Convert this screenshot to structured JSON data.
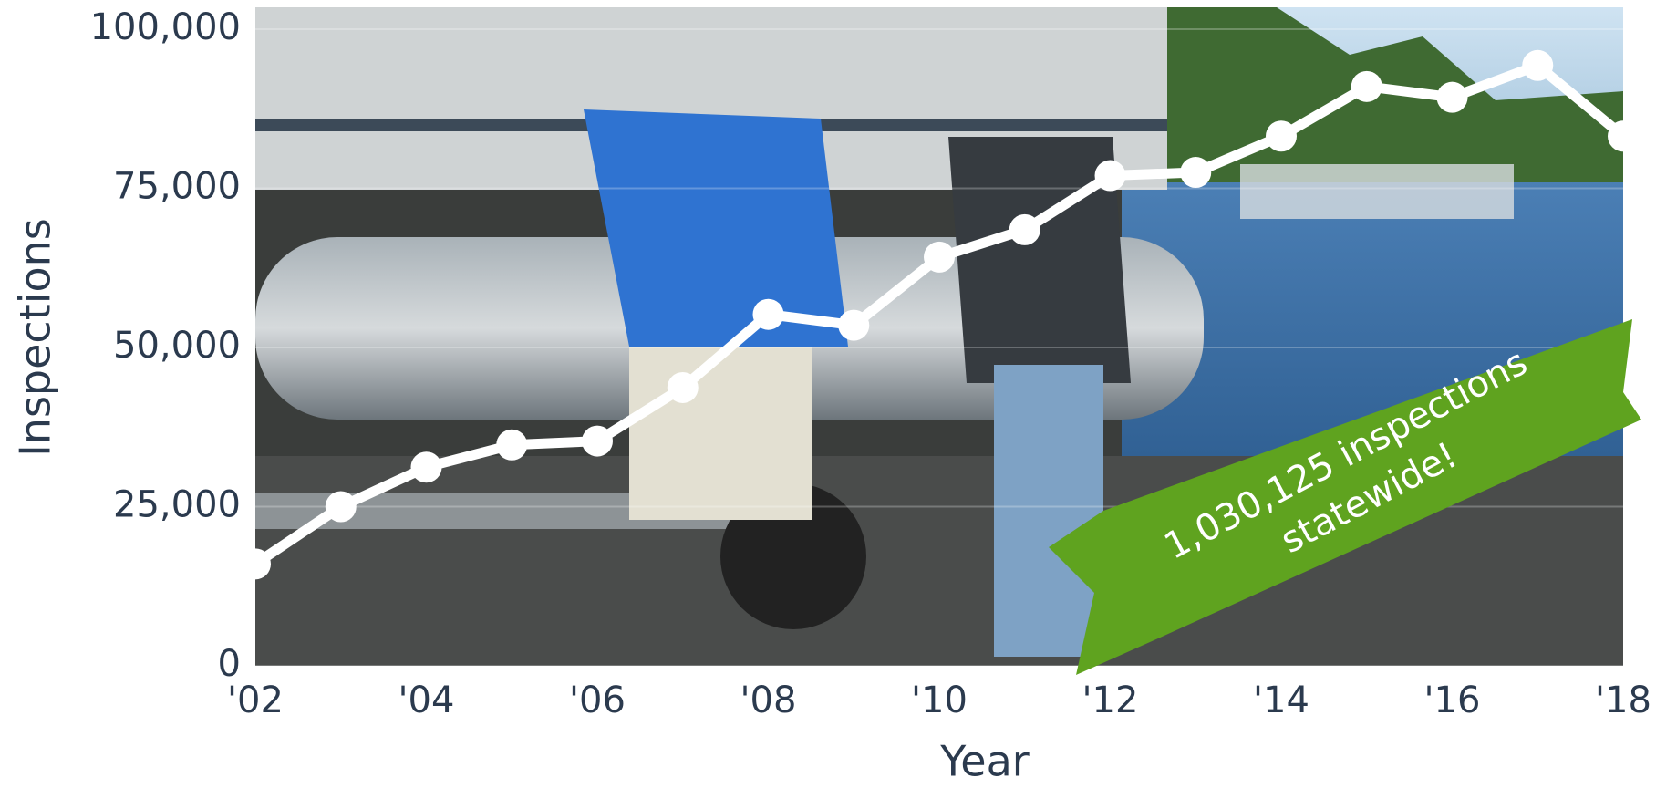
{
  "chart_data": {
    "type": "line",
    "x_label": "Year",
    "y_label": "Inspections",
    "annotation": [
      "1,030,125 inspections",
      "statewide!"
    ],
    "x": [
      2002,
      2003,
      2004,
      2005,
      2006,
      2007,
      2008,
      2009,
      2010,
      2011,
      2012,
      2013,
      2014,
      2015,
      2016,
      2017,
      2018
    ],
    "series": [
      {
        "color": "#ffffff",
        "values": [
          16000,
          25000,
          31200,
          34700,
          35300,
          43700,
          55200,
          53500,
          64200,
          68500,
          77000,
          77500,
          83200,
          91000,
          89300,
          94300,
          83200
        ]
      }
    ],
    "xlim": [
      2002,
      2018
    ],
    "xticks": [
      {
        "value": 2002,
        "label": "'02"
      },
      {
        "value": 2004,
        "label": "'04"
      },
      {
        "value": 2006,
        "label": "'06"
      },
      {
        "value": 2008,
        "label": "'08"
      },
      {
        "value": 2010,
        "label": "'10"
      },
      {
        "value": 2012,
        "label": "'12"
      },
      {
        "value": 2014,
        "label": "'14"
      },
      {
        "value": 2016,
        "label": "'16"
      },
      {
        "value": 2018,
        "label": "'18"
      }
    ],
    "ylim": [
      0,
      100000
    ],
    "yticks": [
      0,
      {
        "value": 25000,
        "label": "25,000"
      },
      {
        "value": 50000,
        "label": "50,000"
      },
      {
        "value": 75000,
        "label": "75,000"
      },
      {
        "value": 100000,
        "label": "100,000"
      }
    ],
    "grid": true
  }
}
